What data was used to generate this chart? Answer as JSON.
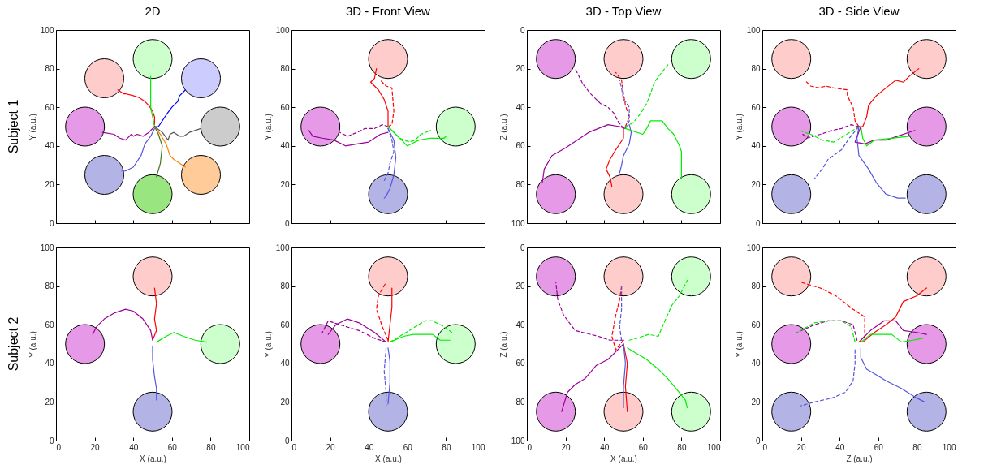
{
  "chart_data": [
    {
      "type": "line",
      "title": "2D",
      "ylabel": "Y (a.u.)",
      "xlim": [
        0,
        100
      ],
      "ylim": [
        0,
        100
      ],
      "xticks": [
        0,
        20,
        40,
        60,
        80,
        100
      ],
      "yticks": [
        0,
        20,
        40,
        60,
        80,
        100
      ],
      "tick_labels": "y",
      "annotations": [
        "Subject 1"
      ],
      "series": [
        {
          "type": "bubble",
          "color": "#ccffcc",
          "x": [
            50
          ],
          "values": [
            85
          ],
          "sizes": [
            1
          ]
        },
        {
          "type": "bubble",
          "color": "#ccccff",
          "x": [
            75
          ],
          "values": [
            75
          ],
          "sizes": [
            1
          ]
        },
        {
          "type": "bubble",
          "color": "#cccccc",
          "x": [
            85
          ],
          "values": [
            50
          ],
          "sizes": [
            1
          ]
        },
        {
          "type": "bubble",
          "color": "#ffcc99",
          "x": [
            75
          ],
          "values": [
            25
          ],
          "sizes": [
            1
          ]
        },
        {
          "type": "bubble",
          "color": "#99e680",
          "x": [
            50
          ],
          "values": [
            15
          ],
          "sizes": [
            1
          ]
        },
        {
          "type": "bubble",
          "color": "#b3b3e6",
          "x": [
            25
          ],
          "values": [
            25
          ],
          "sizes": [
            1
          ]
        },
        {
          "type": "bubble",
          "color": "#e699e6",
          "x": [
            15
          ],
          "values": [
            50
          ],
          "sizes": [
            1
          ]
        },
        {
          "type": "bubble",
          "color": "#ffcccc",
          "x": [
            25
          ],
          "values": [
            75
          ],
          "sizes": [
            1
          ]
        },
        {
          "color": "#ff0000",
          "x": [
            32,
            35,
            36,
            40,
            43,
            46,
            48,
            50,
            51,
            51
          ],
          "values": [
            69,
            67,
            67,
            66,
            65,
            63,
            61,
            58,
            55,
            51
          ]
        },
        {
          "color": "#00ee00",
          "x": [
            51,
            50,
            49,
            49,
            49,
            49
          ],
          "values": [
            50,
            55,
            60,
            66,
            72,
            76
          ]
        },
        {
          "color": "#0000ff",
          "x": [
            51,
            53,
            55,
            57,
            60,
            63,
            64,
            67
          ],
          "values": [
            50,
            50,
            53,
            56,
            60,
            63,
            66,
            69
          ]
        },
        {
          "color": "#555555",
          "x": [
            51,
            55,
            58,
            59,
            61,
            64,
            66,
            69,
            75
          ],
          "values": [
            50,
            47,
            43,
            46,
            47,
            45,
            45,
            47,
            49
          ]
        },
        {
          "color": "#ff8000",
          "x": [
            51,
            54,
            57,
            59,
            61,
            64,
            67
          ],
          "values": [
            50,
            46,
            41,
            35,
            33,
            31,
            29
          ]
        },
        {
          "color": "#447722",
          "x": [
            51,
            53,
            55,
            54,
            52
          ],
          "values": [
            50,
            46,
            40,
            31,
            24
          ]
        },
        {
          "color": "#5555dd",
          "x": [
            51,
            49,
            46,
            44,
            40,
            36,
            34
          ],
          "values": [
            49,
            45,
            41,
            35,
            29,
            27,
            27
          ]
        },
        {
          "color": "#990099",
          "x": [
            51,
            48,
            45,
            42,
            40,
            39,
            36,
            33,
            30,
            24
          ],
          "values": [
            50,
            47,
            45,
            46,
            45,
            46,
            43,
            44,
            46,
            47
          ]
        }
      ]
    },
    {
      "type": "line",
      "title": "3D - Front View",
      "ylabel": "Y (a.u.)",
      "xlim": [
        0,
        100
      ],
      "ylim": [
        0,
        100
      ],
      "xticks": [
        0,
        20,
        40,
        60,
        80,
        100
      ],
      "yticks": [
        0,
        20,
        40,
        60,
        80,
        100
      ],
      "tick_labels": "y",
      "series": [
        {
          "type": "bubble",
          "color": "#ffcccc",
          "x": [
            50
          ],
          "values": [
            85
          ],
          "sizes": [
            1
          ]
        },
        {
          "type": "bubble",
          "color": "#e699e6",
          "x": [
            15
          ],
          "values": [
            50
          ],
          "sizes": [
            1
          ]
        },
        {
          "type": "bubble",
          "color": "#ccffcc",
          "x": [
            85
          ],
          "values": [
            50
          ],
          "sizes": [
            1
          ]
        },
        {
          "type": "bubble",
          "color": "#b3b3e6",
          "x": [
            50
          ],
          "values": [
            15
          ],
          "sizes": [
            1
          ]
        },
        {
          "color": "#ff0000",
          "x": [
            50,
            50,
            48,
            45,
            41,
            43,
            44
          ],
          "values": [
            50,
            58,
            64,
            69,
            73,
            75,
            80
          ]
        },
        {
          "color": "#ff0000",
          "line_style": "dashed",
          "x": [
            50,
            52,
            53,
            52,
            49,
            46
          ],
          "values": [
            50,
            51,
            58,
            70,
            71,
            74
          ]
        },
        {
          "color": "#990099",
          "x": [
            50,
            46,
            40,
            34,
            28,
            22,
            16,
            11,
            9
          ],
          "values": [
            47,
            46,
            42,
            41,
            40,
            43,
            44,
            45,
            48
          ]
        },
        {
          "color": "#990099",
          "line_style": "dashed",
          "x": [
            50,
            47,
            43,
            38,
            34,
            29,
            27,
            25
          ],
          "values": [
            50,
            51,
            49,
            49,
            47,
            45,
            46,
            47
          ]
        },
        {
          "color": "#00ee00",
          "x": [
            50,
            55,
            60,
            66,
            72,
            79,
            80
          ],
          "values": [
            50,
            45,
            40,
            43,
            44,
            44,
            45
          ]
        },
        {
          "color": "#00ee00",
          "line_style": "dashed",
          "x": [
            50,
            56,
            61,
            64,
            67,
            72
          ],
          "values": [
            50,
            44,
            42,
            43,
            46,
            48
          ]
        },
        {
          "color": "#5555dd",
          "x": [
            50,
            53,
            54,
            53,
            51,
            49,
            48
          ],
          "values": [
            49,
            43,
            34,
            25,
            18,
            14,
            13
          ]
        },
        {
          "color": "#5555dd",
          "line_style": "dashed",
          "x": [
            50,
            52,
            53,
            51,
            50,
            48
          ],
          "values": [
            49,
            43,
            37,
            31,
            26,
            22
          ]
        }
      ]
    },
    {
      "type": "line",
      "title": "3D - Top View",
      "ylabel": "Z (a.u.)",
      "xlim": [
        0,
        100
      ],
      "ylim": [
        100,
        0
      ],
      "xticks": [
        0,
        20,
        40,
        60,
        80,
        100
      ],
      "yticks": [
        0,
        20,
        40,
        60,
        80,
        100
      ],
      "tick_labels": "y",
      "series": [
        {
          "type": "bubble",
          "color": "#e699e6",
          "x": [
            15,
            15
          ],
          "values": [
            15,
            85
          ],
          "sizes": [
            1,
            1
          ]
        },
        {
          "type": "bubble",
          "color": "#ffcccc",
          "x": [
            50,
            50
          ],
          "values": [
            15,
            85
          ],
          "sizes": [
            1,
            1
          ]
        },
        {
          "type": "bubble",
          "color": "#ccffcc",
          "x": [
            85,
            85
          ],
          "values": [
            15,
            85
          ],
          "sizes": [
            1,
            1
          ]
        },
        {
          "color": "#990099",
          "line_style": "dashed",
          "x": [
            50,
            47,
            45,
            42,
            38,
            33,
            29,
            25
          ],
          "values": [
            51,
            47,
            43,
            40,
            38,
            33,
            28,
            20
          ]
        },
        {
          "color": "#ff0000",
          "line_style": "dashed",
          "x": [
            51,
            53,
            51,
            50,
            49,
            46
          ],
          "values": [
            50,
            45,
            39,
            33,
            26,
            22
          ]
        },
        {
          "color": "#5555dd",
          "line_style": "dashed",
          "x": [
            51,
            53,
            53,
            51,
            50,
            49,
            48
          ],
          "values": [
            51,
            47,
            40,
            37,
            36,
            30,
            26
          ]
        },
        {
          "color": "#00ee00",
          "line_style": "dashed",
          "x": [
            51,
            55,
            59,
            62,
            64,
            66,
            69,
            73
          ],
          "values": [
            50,
            48,
            43,
            38,
            33,
            27,
            23,
            18
          ]
        },
        {
          "color": "#990099",
          "x": [
            51,
            48,
            42,
            37,
            32,
            26,
            20,
            13,
            9,
            8
          ],
          "values": [
            51,
            50,
            49,
            51,
            53,
            57,
            61,
            65,
            72,
            79
          ]
        },
        {
          "color": "#ff0000",
          "x": [
            50,
            50,
            46,
            43,
            41,
            43,
            44
          ],
          "values": [
            51,
            56,
            62,
            67,
            72,
            76,
            81
          ]
        },
        {
          "color": "#5555dd",
          "x": [
            53,
            54,
            53,
            50,
            49,
            48
          ],
          "values": [
            49,
            53,
            59,
            65,
            70,
            74
          ]
        },
        {
          "color": "#00ee00",
          "x": [
            51,
            60,
            62,
            64,
            70,
            73,
            76,
            79,
            80,
            80
          ],
          "values": [
            51,
            54,
            51,
            47,
            47,
            51,
            54,
            60,
            63,
            77
          ]
        }
      ]
    },
    {
      "type": "line",
      "title": "3D - Side View",
      "ylabel": "Y (a.u.)",
      "xlim": [
        0,
        100
      ],
      "ylim": [
        0,
        100
      ],
      "xticks": [
        0,
        20,
        40,
        60,
        80,
        100
      ],
      "yticks": [
        0,
        20,
        40,
        60,
        80,
        100
      ],
      "tick_labels": "y",
      "series": [
        {
          "type": "bubble",
          "color": "#ffcccc",
          "x": [
            15,
            85
          ],
          "values": [
            85,
            85
          ],
          "sizes": [
            1,
            1
          ]
        },
        {
          "type": "bubble",
          "color": "#e699e6",
          "x": [
            15,
            85
          ],
          "values": [
            50,
            50
          ],
          "sizes": [
            1,
            1
          ]
        },
        {
          "type": "bubble",
          "color": "#b3b3e6",
          "x": [
            15,
            85
          ],
          "values": [
            15,
            15
          ],
          "sizes": [
            1,
            1
          ]
        },
        {
          "color": "#ff0000",
          "line_style": "dashed",
          "x": [
            50,
            48,
            47,
            44,
            44,
            37,
            33,
            29,
            25,
            22
          ],
          "values": [
            50,
            53,
            60,
            66,
            69,
            70,
            71,
            70,
            71,
            74
          ]
        },
        {
          "color": "#ff0000",
          "x": [
            50,
            52,
            54,
            55,
            59,
            64,
            69,
            73,
            76,
            81
          ],
          "values": [
            50,
            50,
            55,
            61,
            66,
            70,
            74,
            73,
            76,
            80
          ]
        },
        {
          "color": "#990099",
          "line_style": "dashed",
          "x": [
            50,
            46,
            41,
            36,
            30,
            23,
            21
          ],
          "values": [
            50,
            51,
            49,
            48,
            46,
            44,
            46
          ]
        },
        {
          "color": "#00ee00",
          "line_style": "dashed",
          "x": [
            50,
            42,
            37,
            31,
            25,
            19
          ],
          "values": [
            50,
            45,
            42,
            43,
            46,
            48
          ]
        },
        {
          "color": "#5555dd",
          "line_style": "dashed",
          "x": [
            50,
            45,
            41,
            34,
            31,
            27
          ],
          "values": [
            50,
            44,
            38,
            33,
            28,
            23
          ]
        },
        {
          "color": "#990099",
          "x": [
            51,
            48,
            53,
            58,
            64,
            70,
            79
          ],
          "values": [
            50,
            42,
            41,
            43,
            43,
            45,
            48
          ]
        },
        {
          "color": "#00ee00",
          "x": [
            51,
            52,
            54,
            58,
            67,
            76
          ],
          "values": [
            50,
            44,
            40,
            43,
            44,
            45
          ]
        },
        {
          "color": "#5555dd",
          "x": [
            50,
            49,
            50,
            55,
            59,
            64,
            70,
            74
          ],
          "values": [
            50,
            44,
            35,
            28,
            21,
            15,
            13,
            13
          ]
        }
      ]
    },
    {
      "type": "line",
      "xlabel": "X (a.u.)",
      "ylabel": "Y (a.u.)",
      "xlim": [
        0,
        100
      ],
      "ylim": [
        0,
        100
      ],
      "xticks": [
        0,
        20,
        40,
        60,
        80,
        100
      ],
      "yticks": [
        0,
        20,
        40,
        60,
        80,
        100
      ],
      "annotations": [
        "Subject 2"
      ],
      "series": [
        {
          "type": "bubble",
          "color": "#ffcccc",
          "x": [
            50
          ],
          "values": [
            85
          ],
          "sizes": [
            1
          ]
        },
        {
          "type": "bubble",
          "color": "#e699e6",
          "x": [
            15
          ],
          "values": [
            50
          ],
          "sizes": [
            1
          ]
        },
        {
          "type": "bubble",
          "color": "#ccffcc",
          "x": [
            85
          ],
          "values": [
            50
          ],
          "sizes": [
            1
          ]
        },
        {
          "type": "bubble",
          "color": "#b3b3e6",
          "x": [
            50
          ],
          "values": [
            15
          ],
          "sizes": [
            1
          ]
        },
        {
          "color": "#ff0000",
          "x": [
            50,
            52,
            51,
            52,
            51
          ],
          "values": [
            52,
            57,
            63,
            71,
            79
          ]
        },
        {
          "color": "#990099",
          "x": [
            50,
            49,
            45,
            40,
            36,
            30,
            25,
            21,
            19
          ],
          "values": [
            52,
            57,
            63,
            67,
            68,
            66,
            63,
            59,
            55
          ]
        },
        {
          "color": "#00ee00",
          "x": [
            52,
            57,
            61,
            66,
            72,
            78
          ],
          "values": [
            51,
            54,
            56,
            54,
            52,
            51
          ]
        },
        {
          "color": "#5555dd",
          "x": [
            50,
            50,
            51,
            52,
            52
          ],
          "values": [
            49,
            42,
            33,
            27,
            21
          ]
        }
      ]
    },
    {
      "type": "line",
      "xlabel": "X (a.u.)",
      "ylabel": "Y (a.u.)",
      "xlim": [
        0,
        100
      ],
      "ylim": [
        0,
        100
      ],
      "xticks": [
        0,
        20,
        40,
        60,
        80,
        100
      ],
      "yticks": [
        0,
        20,
        40,
        60,
        80,
        100
      ],
      "series": [
        {
          "type": "bubble",
          "color": "#ffcccc",
          "x": [
            50
          ],
          "values": [
            85
          ],
          "sizes": [
            1
          ]
        },
        {
          "type": "bubble",
          "color": "#e699e6",
          "x": [
            15
          ],
          "values": [
            50
          ],
          "sizes": [
            1
          ]
        },
        {
          "type": "bubble",
          "color": "#ccffcc",
          "x": [
            85
          ],
          "values": [
            50
          ],
          "sizes": [
            1
          ]
        },
        {
          "type": "bubble",
          "color": "#b3b3e6",
          "x": [
            50
          ],
          "values": [
            15
          ],
          "sizes": [
            1
          ]
        },
        {
          "color": "#ff0000",
          "x": [
            50,
            51,
            52,
            52
          ],
          "values": [
            51,
            60,
            69,
            79
          ]
        },
        {
          "color": "#ff0000",
          "line_style": "dashed",
          "x": [
            50,
            47,
            44,
            45,
            49
          ],
          "values": [
            52,
            59,
            68,
            75,
            82
          ]
        },
        {
          "color": "#990099",
          "x": [
            49,
            43,
            35,
            29,
            23,
            19
          ],
          "values": [
            51,
            56,
            61,
            63,
            60,
            55
          ]
        },
        {
          "color": "#990099",
          "line_style": "dashed",
          "x": [
            49,
            43,
            35,
            25,
            19,
            16
          ],
          "values": [
            51,
            53,
            57,
            60,
            62,
            56
          ]
        },
        {
          "color": "#00ee00",
          "x": [
            51,
            58,
            63,
            73,
            77,
            82
          ],
          "values": [
            51,
            54,
            55,
            55,
            52,
            52
          ]
        },
        {
          "color": "#00ee00",
          "line_style": "dashed",
          "x": [
            51,
            61,
            69,
            73,
            79,
            83
          ],
          "values": [
            51,
            57,
            62,
            62,
            59,
            56
          ]
        },
        {
          "color": "#5555dd",
          "x": [
            50,
            51,
            51,
            50
          ],
          "values": [
            48,
            41,
            30,
            19
          ]
        },
        {
          "color": "#5555dd",
          "line_style": "dashed",
          "x": [
            49,
            48,
            49,
            49
          ],
          "values": [
            48,
            36,
            25,
            18
          ]
        }
      ]
    },
    {
      "type": "line",
      "xlabel": "X (a.u.)",
      "ylabel": "Z (a.u.)",
      "xlim": [
        0,
        100
      ],
      "ylim": [
        100,
        0
      ],
      "xticks": [
        0,
        20,
        40,
        60,
        80,
        100
      ],
      "yticks": [
        0,
        20,
        40,
        60,
        80,
        100
      ],
      "series": [
        {
          "type": "bubble",
          "color": "#e699e6",
          "x": [
            15,
            15
          ],
          "values": [
            15,
            85
          ],
          "sizes": [
            1,
            1
          ]
        },
        {
          "type": "bubble",
          "color": "#ffcccc",
          "x": [
            50,
            50
          ],
          "values": [
            15,
            85
          ],
          "sizes": [
            1,
            1
          ]
        },
        {
          "type": "bubble",
          "color": "#ccffcc",
          "x": [
            85,
            85
          ],
          "values": [
            15,
            85
          ],
          "sizes": [
            1,
            1
          ]
        },
        {
          "color": "#990099",
          "line_style": "dashed",
          "x": [
            50,
            43,
            37,
            29,
            25,
            22,
            19,
            16,
            15
          ],
          "values": [
            48,
            48,
            46,
            44,
            43,
            39,
            35,
            27,
            18
          ]
        },
        {
          "color": "#ff0000",
          "line_style": "dashed",
          "x": [
            50,
            46,
            44,
            46,
            48,
            49
          ],
          "values": [
            48,
            53,
            46,
            35,
            27,
            20
          ]
        },
        {
          "color": "#5555dd",
          "line_style": "dashed",
          "x": [
            49,
            48,
            49,
            49
          ],
          "values": [
            48,
            41,
            32,
            20
          ]
        },
        {
          "color": "#00ee00",
          "line_style": "dashed",
          "x": [
            53,
            57,
            63,
            68,
            71,
            75,
            79,
            83
          ],
          "values": [
            48,
            47,
            45,
            46,
            39,
            30,
            25,
            17
          ]
        },
        {
          "color": "#990099",
          "x": [
            50,
            47,
            42,
            36,
            30,
            25,
            21,
            18
          ],
          "values": [
            50,
            53,
            58,
            61,
            68,
            71,
            75,
            85
          ]
        },
        {
          "color": "#ff0000",
          "x": [
            50,
            52,
            51,
            52
          ],
          "values": [
            50,
            60,
            72,
            85
          ]
        },
        {
          "color": "#5555dd",
          "x": [
            50,
            51,
            50,
            50
          ],
          "values": [
            50,
            60,
            72,
            83
          ]
        },
        {
          "color": "#00ee00",
          "x": [
            52,
            57,
            62,
            68,
            73,
            78,
            82,
            83
          ],
          "values": [
            52,
            55,
            58,
            63,
            68,
            74,
            79,
            83
          ]
        }
      ]
    },
    {
      "type": "line",
      "xlabel": "Z (a.u.)",
      "ylabel": "Y (a.u.)",
      "xlim": [
        0,
        100
      ],
      "ylim": [
        0,
        100
      ],
      "xticks": [
        0,
        20,
        40,
        60,
        80,
        100
      ],
      "yticks": [
        0,
        20,
        40,
        60,
        80,
        100
      ],
      "series": [
        {
          "type": "bubble",
          "color": "#ffcccc",
          "x": [
            15,
            85
          ],
          "values": [
            85,
            85
          ],
          "sizes": [
            1,
            1
          ]
        },
        {
          "type": "bubble",
          "color": "#e699e6",
          "x": [
            15,
            85
          ],
          "values": [
            50,
            50
          ],
          "sizes": [
            1,
            1
          ]
        },
        {
          "type": "bubble",
          "color": "#b3b3e6",
          "x": [
            15,
            85
          ],
          "values": [
            15,
            15
          ],
          "sizes": [
            1,
            1
          ]
        },
        {
          "color": "#ff0000",
          "line_style": "dashed",
          "x": [
            50,
            53,
            53,
            47,
            38,
            30,
            20
          ],
          "values": [
            51,
            54,
            64,
            68,
            75,
            79,
            82
          ]
        },
        {
          "color": "#ff0000",
          "x": [
            52,
            58,
            64,
            69,
            73,
            80,
            85
          ],
          "values": [
            51,
            56,
            60,
            64,
            72,
            75,
            79
          ]
        },
        {
          "color": "#990099",
          "x": [
            51,
            56,
            63,
            69,
            73,
            80,
            85
          ],
          "values": [
            52,
            57,
            62,
            62,
            57,
            56,
            55
          ]
        },
        {
          "color": "#990099",
          "line_style": "dashed",
          "x": [
            49,
            47,
            41,
            34,
            27,
            18
          ],
          "values": [
            52,
            60,
            62,
            62,
            60,
            56
          ]
        },
        {
          "color": "#00ee00",
          "line_style": "dashed",
          "x": [
            48,
            46,
            41,
            34,
            27,
            18
          ],
          "values": [
            51,
            59,
            62,
            62,
            61,
            56
          ]
        },
        {
          "color": "#5555dd",
          "line_style": "dashed",
          "x": [
            48,
            48,
            47,
            43,
            36,
            27,
            20
          ],
          "values": [
            47,
            40,
            31,
            25,
            22,
            20,
            18
          ]
        },
        {
          "color": "#5555dd",
          "x": [
            51,
            51,
            54,
            59,
            64,
            72,
            80,
            84
          ],
          "values": [
            48,
            43,
            37,
            34,
            31,
            27,
            22,
            20
          ]
        },
        {
          "color": "#00ee00",
          "x": [
            51,
            56,
            64,
            67,
            72,
            78,
            83
          ],
          "values": [
            51,
            55,
            55,
            55,
            51,
            52,
            53
          ]
        }
      ]
    }
  ]
}
